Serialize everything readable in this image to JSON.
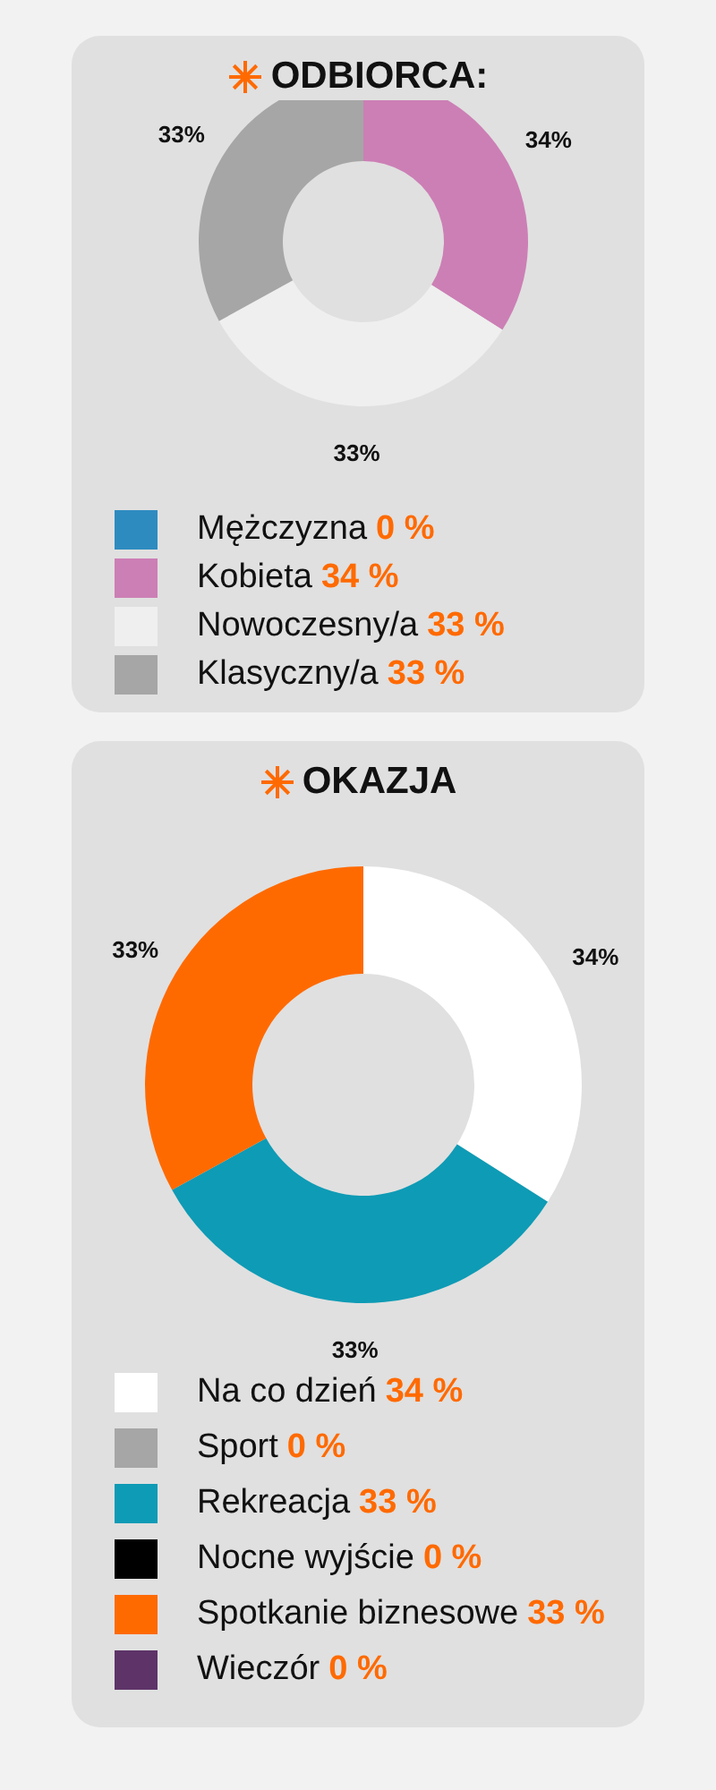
{
  "chart_data": [
    {
      "type": "donut",
      "title": "ODBIORCA:",
      "categories": [
        "Mężczyzna",
        "Kobieta",
        "Nowoczesny/a",
        "Klasyczny/a"
      ],
      "values": [
        0,
        34,
        33,
        33
      ],
      "colors": [
        "#2e8bc0",
        "#cc7fb5",
        "#efefef",
        "#a6a6a6"
      ],
      "value_labels": [
        null,
        "34%",
        "33%",
        "33%"
      ],
      "annotations": [
        "0 %",
        "34 %",
        "33 %",
        "33 %"
      ],
      "legend": "bottom"
    },
    {
      "type": "donut",
      "title": "OKAZJA",
      "categories": [
        "Na co dzień",
        "Sport",
        "Rekreacja",
        "Nocne wyjście",
        "Spotkanie biznesowe",
        "Wieczór"
      ],
      "values": [
        34,
        0,
        33,
        0,
        33,
        0
      ],
      "colors": [
        "#ffffff",
        "#a6a6a6",
        "#0e9bb5",
        "#000000",
        "#ff6a00",
        "#5e3468"
      ],
      "value_labels": [
        "34%",
        null,
        "33%",
        null,
        "33%",
        null
      ],
      "annotations": [
        "34 %",
        "0 %",
        "33 %",
        "0 %",
        "33 %",
        "0 %"
      ],
      "legend": "bottom"
    }
  ]
}
